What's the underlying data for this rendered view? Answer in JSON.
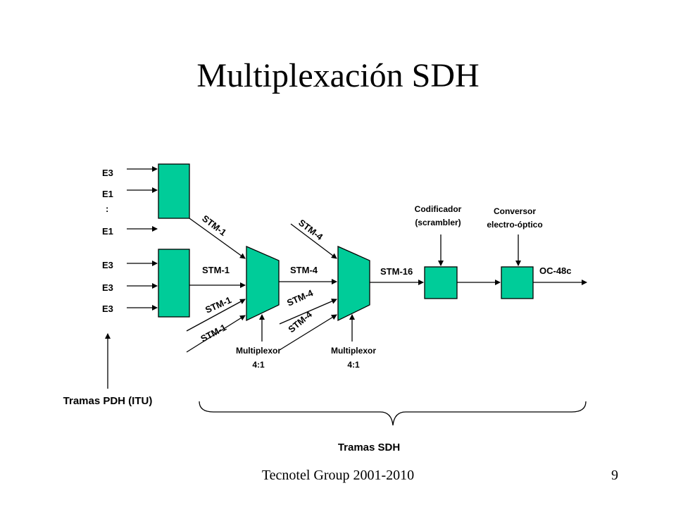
{
  "title": "Multiplexación SDH",
  "footer": {
    "left": "Tecnotel Group 2001-2010",
    "page": "9"
  },
  "colors": {
    "box_fill": "#00cc99",
    "line": "#000000"
  },
  "inputs": {
    "group1": [
      "E3",
      "E1",
      ":",
      "E1"
    ],
    "group2": [
      "E3",
      "E3",
      "E3"
    ]
  },
  "signals": {
    "stm1": "STM-1",
    "stm4": "STM-4",
    "stm16": "STM-16",
    "oc48c": "OC-48c"
  },
  "mux1": {
    "line1": "Multiplexor",
    "line2": "4:1"
  },
  "mux2": {
    "line1": "Multiplexor",
    "line2": "4:1"
  },
  "scrambler": {
    "line1": "Codificador",
    "line2": "(scrambler)"
  },
  "converter": {
    "line1": "Conversor",
    "line2": "electro-óptico"
  },
  "pdh_label": "Tramas PDH (ITU)",
  "sdh_label": "Tramas SDH"
}
